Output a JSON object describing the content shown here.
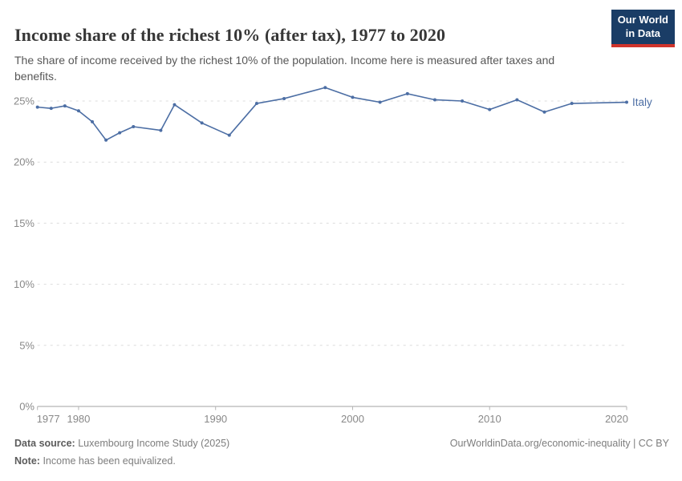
{
  "header": {
    "title": "Income share of the richest 10% (after tax), 1977 to 2020",
    "subtitle": "The share of income received by the richest 10% of the population. Income here is measured after taxes and benefits.",
    "logo": {
      "line1": "Our World",
      "line2": "in Data"
    }
  },
  "chart_data": {
    "type": "line",
    "title": "Income share of the richest 10% (after tax), 1977 to 2020",
    "xlabel": "",
    "ylabel": "",
    "xlim": [
      1977,
      2020
    ],
    "ylim": [
      0,
      27
    ],
    "grid": "horizontal-dashed",
    "legend_position": "end-of-line-label",
    "x_ticks": [
      1977,
      1980,
      1990,
      2000,
      2010,
      2020
    ],
    "y_ticks": [
      0,
      5,
      10,
      15,
      20,
      25
    ],
    "y_tick_suffix": "%",
    "series": [
      {
        "name": "Italy",
        "color": "#4c6ea4",
        "x": [
          1977,
          1978,
          1979,
          1980,
          1981,
          1982,
          1983,
          1984,
          1986,
          1987,
          1989,
          1991,
          1993,
          1995,
          1998,
          2000,
          2002,
          2004,
          2006,
          2008,
          2010,
          2012,
          2014,
          2016,
          2020
        ],
        "y": [
          24.5,
          24.4,
          24.6,
          24.2,
          23.3,
          21.8,
          22.4,
          22.9,
          22.6,
          24.7,
          23.2,
          22.2,
          24.8,
          25.2,
          26.1,
          25.3,
          24.9,
          25.6,
          25.1,
          25.0,
          24.3,
          25.1,
          24.1,
          24.8,
          24.9
        ]
      }
    ]
  },
  "footer": {
    "datasource_label": "Data source:",
    "datasource_text": "Luxembourg Income Study (2025)",
    "note_label": "Note:",
    "note_text": "Income has been equivalized.",
    "rights": "OurWorldinData.org/economic-inequality | CC BY"
  },
  "colors": {
    "line": "#4c6ea4",
    "grid": "#dcdcdc",
    "axis": "#a3a3a3",
    "tick": "#b5b5b5",
    "tick_label": "#888888",
    "logo_bg": "#1a3d66",
    "logo_stripe": "#d0342c"
  }
}
